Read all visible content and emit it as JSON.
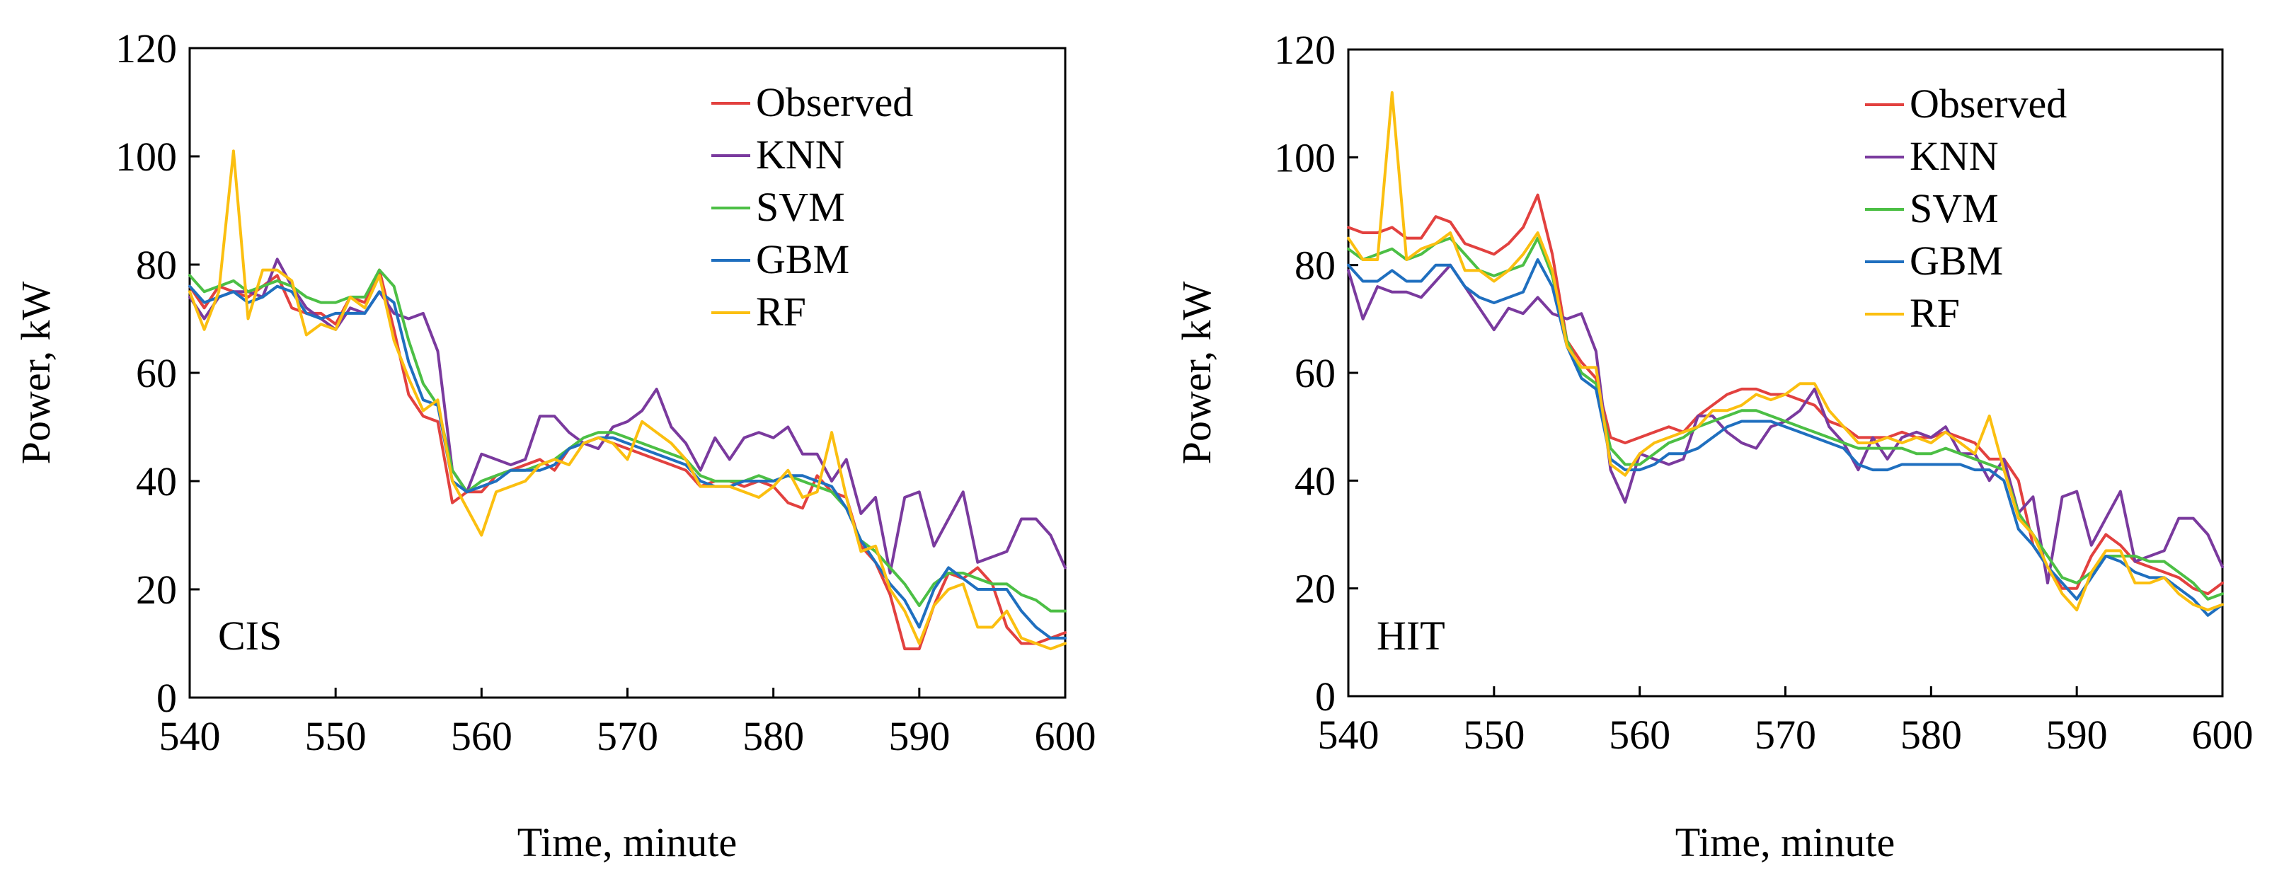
{
  "chart_data": [
    {
      "type": "line",
      "panel_label": "CIS",
      "xlabel": "Time, minute",
      "ylabel": "Power, kW",
      "xlim": [
        540,
        600
      ],
      "ylim": [
        0,
        120
      ],
      "x_ticks": [
        540,
        550,
        560,
        570,
        580,
        590,
        600
      ],
      "y_ticks": [
        0,
        20,
        40,
        60,
        80,
        100,
        120
      ],
      "legend_position": "top-right",
      "grid": false,
      "x_start": 540,
      "series": [
        {
          "name": "Observed",
          "color": "#E2413F",
          "values": [
            76,
            72,
            76,
            75,
            74,
            76,
            78,
            72,
            71,
            71,
            69,
            74,
            73,
            79,
            68,
            56,
            52,
            51,
            36,
            38,
            38,
            41,
            42,
            43,
            44,
            42,
            46,
            47,
            48,
            47,
            46,
            45,
            44,
            43,
            42,
            39,
            40,
            40,
            39,
            40,
            39,
            36,
            35,
            41,
            38,
            37,
            28,
            25,
            19,
            9,
            9,
            17,
            23,
            22,
            24,
            21,
            13,
            10,
            10,
            11,
            12
          ]
        },
        {
          "name": "KNN",
          "color": "#7A3A9E",
          "values": [
            74,
            70,
            74,
            75,
            75,
            74,
            81,
            76,
            72,
            70,
            68,
            72,
            71,
            75,
            71,
            70,
            71,
            64,
            42,
            38,
            45,
            44,
            43,
            44,
            52,
            52,
            49,
            47,
            46,
            50,
            51,
            53,
            57,
            50,
            47,
            42,
            48,
            44,
            48,
            49,
            48,
            50,
            45,
            45,
            40,
            44,
            34,
            37,
            23,
            37,
            38,
            28,
            33,
            38,
            25,
            26,
            27,
            33,
            33,
            30,
            24
          ]
        },
        {
          "name": "SVM",
          "color": "#4CBF45",
          "values": [
            78,
            75,
            76,
            77,
            75,
            76,
            77,
            76,
            74,
            73,
            73,
            74,
            74,
            79,
            76,
            66,
            58,
            54,
            42,
            38,
            40,
            41,
            42,
            42,
            43,
            44,
            46,
            48,
            49,
            49,
            48,
            47,
            46,
            45,
            44,
            41,
            40,
            40,
            40,
            41,
            40,
            41,
            40,
            39,
            38,
            35,
            29,
            27,
            24,
            21,
            17,
            21,
            23,
            23,
            22,
            21,
            21,
            19,
            18,
            16,
            16
          ]
        },
        {
          "name": "GBM",
          "color": "#1F6FBF",
          "values": [
            76,
            73,
            74,
            75,
            73,
            74,
            76,
            75,
            71,
            70,
            71,
            71,
            71,
            75,
            73,
            62,
            55,
            54,
            40,
            38,
            39,
            40,
            42,
            42,
            42,
            43,
            46,
            47,
            48,
            48,
            47,
            46,
            45,
            44,
            43,
            40,
            39,
            39,
            40,
            40,
            40,
            41,
            41,
            40,
            39,
            35,
            29,
            25,
            21,
            18,
            13,
            20,
            24,
            22,
            20,
            20,
            20,
            16,
            13,
            11,
            11
          ]
        },
        {
          "name": "RF",
          "color": "#FBBF10",
          "values": [
            75,
            68,
            75,
            101,
            70,
            79,
            79,
            77,
            67,
            69,
            68,
            74,
            72,
            78,
            66,
            59,
            53,
            55,
            40,
            35,
            30,
            38,
            39,
            40,
            43,
            44,
            43,
            47,
            48,
            47,
            44,
            51,
            49,
            47,
            44,
            39,
            39,
            39,
            38,
            37,
            39,
            42,
            37,
            38,
            49,
            37,
            27,
            28,
            20,
            16,
            10,
            17,
            20,
            21,
            13,
            13,
            16,
            11,
            10,
            9,
            10
          ]
        }
      ]
    },
    {
      "type": "line",
      "panel_label": "HIT",
      "xlabel": "Time, minute",
      "ylabel": "Power, kW",
      "xlim": [
        540,
        600
      ],
      "ylim": [
        0,
        120
      ],
      "x_ticks": [
        540,
        550,
        560,
        570,
        580,
        590,
        600
      ],
      "y_ticks": [
        0,
        20,
        40,
        60,
        80,
        100,
        120
      ],
      "legend_position": "top-right",
      "grid": false,
      "x_start": 540,
      "series": [
        {
          "name": "Observed",
          "color": "#E2413F",
          "values": [
            87,
            86,
            86,
            87,
            85,
            85,
            89,
            88,
            84,
            83,
            82,
            84,
            87,
            93,
            82,
            66,
            62,
            59,
            48,
            47,
            48,
            49,
            50,
            49,
            52,
            54,
            56,
            57,
            57,
            56,
            56,
            55,
            54,
            51,
            50,
            48,
            48,
            48,
            49,
            48,
            48,
            49,
            48,
            47,
            44,
            44,
            40,
            28,
            24,
            20,
            20,
            26,
            30,
            28,
            25,
            24,
            23,
            22,
            20,
            19,
            21
          ]
        },
        {
          "name": "KNN",
          "color": "#7A3A9E",
          "values": [
            79,
            70,
            76,
            75,
            75,
            74,
            77,
            80,
            76,
            72,
            68,
            72,
            71,
            74,
            71,
            70,
            71,
            64,
            42,
            36,
            45,
            44,
            43,
            44,
            52,
            52,
            49,
            47,
            46,
            50,
            51,
            53,
            57,
            50,
            47,
            42,
            48,
            44,
            48,
            49,
            48,
            50,
            45,
            45,
            40,
            44,
            34,
            37,
            21,
            37,
            38,
            28,
            33,
            38,
            25,
            26,
            27,
            33,
            33,
            30,
            24
          ]
        },
        {
          "name": "SVM",
          "color": "#4CBF45",
          "values": [
            83,
            81,
            82,
            83,
            81,
            82,
            84,
            85,
            82,
            79,
            78,
            79,
            80,
            85,
            78,
            66,
            60,
            58,
            46,
            43,
            43,
            45,
            47,
            48,
            50,
            51,
            52,
            53,
            53,
            52,
            51,
            50,
            49,
            48,
            47,
            46,
            46,
            46,
            46,
            45,
            45,
            46,
            45,
            44,
            43,
            42,
            34,
            30,
            26,
            22,
            21,
            23,
            26,
            26,
            26,
            25,
            25,
            23,
            21,
            18,
            19
          ]
        },
        {
          "name": "GBM",
          "color": "#1F6FBF",
          "values": [
            80,
            77,
            77,
            79,
            77,
            77,
            80,
            80,
            76,
            74,
            73,
            74,
            75,
            81,
            76,
            65,
            59,
            57,
            44,
            42,
            42,
            43,
            45,
            45,
            46,
            48,
            50,
            51,
            51,
            51,
            50,
            49,
            48,
            47,
            46,
            43,
            42,
            42,
            43,
            43,
            43,
            43,
            43,
            42,
            42,
            40,
            31,
            28,
            24,
            21,
            18,
            22,
            26,
            25,
            23,
            22,
            22,
            20,
            18,
            15,
            17
          ]
        },
        {
          "name": "RF",
          "color": "#FBBF10",
          "values": [
            85,
            81,
            81,
            112,
            81,
            83,
            84,
            86,
            79,
            79,
            77,
            79,
            82,
            86,
            79,
            65,
            61,
            61,
            43,
            41,
            45,
            47,
            48,
            49,
            50,
            53,
            53,
            54,
            56,
            55,
            56,
            58,
            58,
            53,
            50,
            47,
            47,
            48,
            47,
            48,
            47,
            49,
            47,
            45,
            52,
            42,
            33,
            30,
            24,
            19,
            16,
            23,
            27,
            27,
            21,
            21,
            22,
            19,
            17,
            16,
            17
          ]
        }
      ]
    }
  ]
}
